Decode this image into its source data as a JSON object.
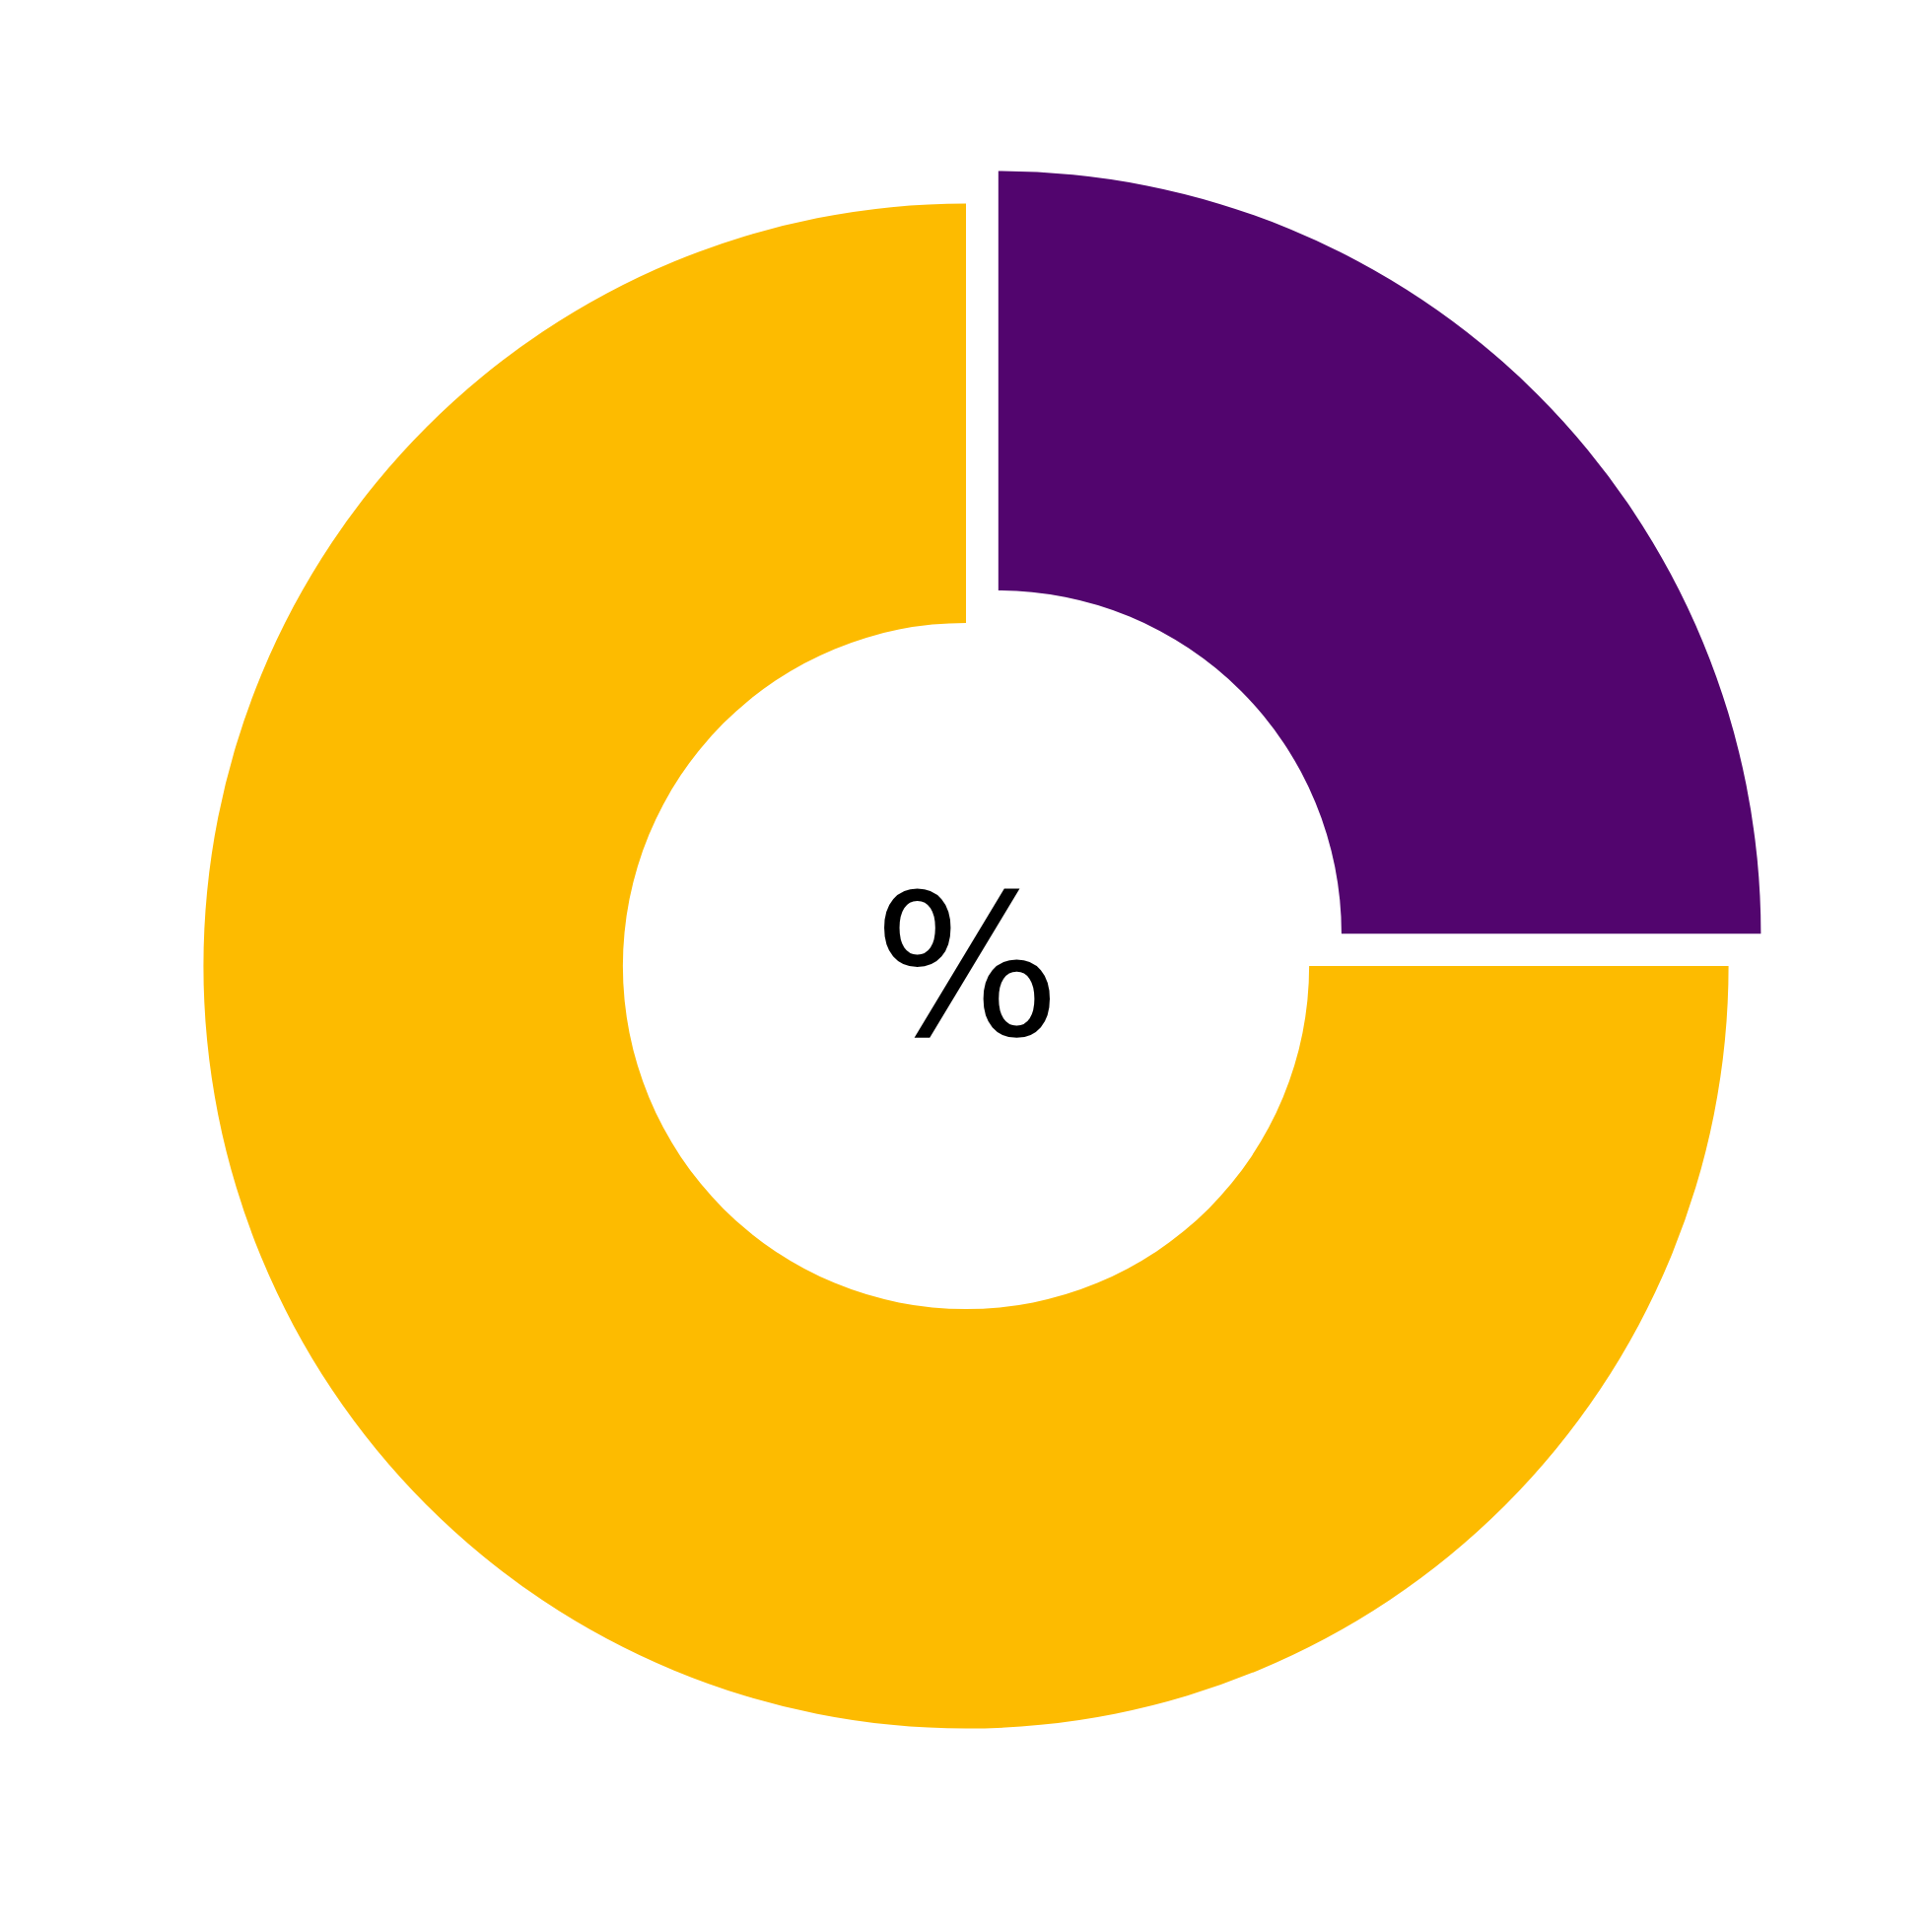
{
  "chart_data": {
    "type": "donut",
    "categories": [
      null,
      null
    ],
    "values": [
      25,
      75
    ],
    "colors": [
      "#52056e",
      "#fdbb00"
    ],
    "annotations": [
      "%"
    ],
    "legend": false
  }
}
